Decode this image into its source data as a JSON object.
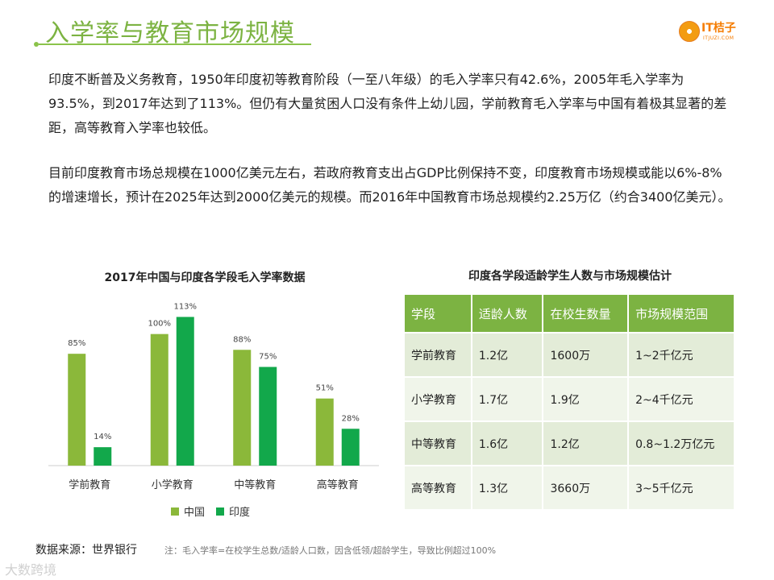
{
  "page": {
    "title": "入学率与教育市场规模",
    "logo_text": "IT桔子",
    "logo_sub": "ITJUZI.COM",
    "paragraph1": "印度不断普及义务教育，1950年印度初等教育阶段（一至八年级）的毛入学率只有42.6%，2005年毛入学率为93.5%，到2017年达到了113%。但仍有大量贫困人口没有条件上幼儿园，学前教育毛入学率与中国有着极其显著的差距，高等教育入学率也较低。",
    "paragraph2": "目前印度教育市场总规模在1000亿美元左右，若政府教育支出占GDP比例保持不变，印度教育市场规模或能以6%-8%的增速增长，预计在2025年达到2000亿美元的规模。而2016年中国教育市场总规模约2.25万亿（约合3400亿美元）。",
    "source": "数据来源：世界银行",
    "note": "注：毛入学率=在校学生总数/适龄人口数，因含低领/超龄学生，导致比例超过100%",
    "watermark": "大数跨境"
  },
  "chart_data": {
    "type": "bar",
    "title": "2017年中国与印度各学段毛入学率数据",
    "categories": [
      "学前教育",
      "小学教育",
      "中等教育",
      "高等教育"
    ],
    "series": [
      {
        "name": "中国",
        "color": "#8bb83a",
        "values": [
          85,
          100,
          88,
          51
        ],
        "labels": [
          "85%",
          "100%",
          "88%",
          "51%"
        ]
      },
      {
        "name": "印度",
        "color": "#12a84b",
        "values": [
          14,
          113,
          75,
          28
        ],
        "labels": [
          "14%",
          "113%",
          "75%",
          "28%"
        ]
      }
    ],
    "ylim": [
      0,
      120
    ],
    "legend_position": "bottom",
    "grid": false
  },
  "table": {
    "title": "印度各学段适龄学生人数与市场规模估计",
    "headers": [
      "学段",
      "适龄人数",
      "在校生数量",
      "市场规模范围"
    ],
    "rows": [
      [
        "学前教育",
        "1.2亿",
        "1600万",
        "1~2千亿元"
      ],
      [
        "小学教育",
        "1.7亿",
        "1.9亿",
        "2~4千亿元"
      ],
      [
        "中等教育",
        "1.6亿",
        "1.2亿",
        "0.8~1.2万亿元"
      ],
      [
        "高等教育",
        "1.3亿",
        "3660万",
        "3~5千亿元"
      ]
    ]
  }
}
